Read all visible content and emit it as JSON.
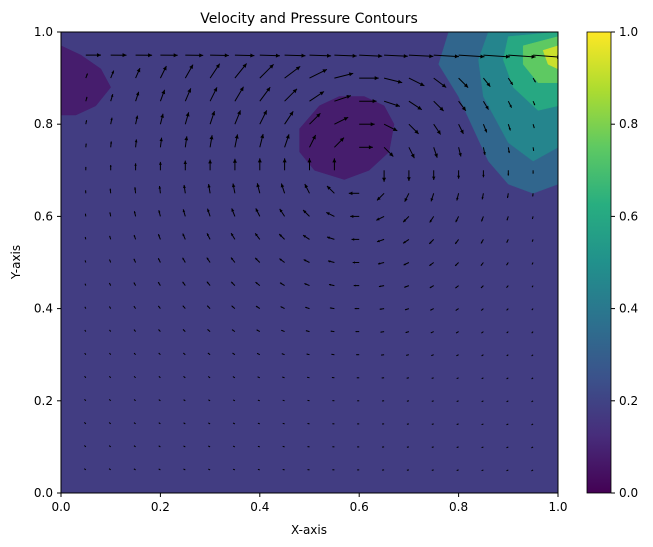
{
  "chart_data": {
    "type": "contour+quiver",
    "title": "Velocity and Pressure Contours",
    "xlabel": "X-axis",
    "ylabel": "Y-axis",
    "xlim": [
      0,
      1
    ],
    "ylim": [
      0,
      1
    ],
    "x_ticks": [
      "0.0",
      "0.2",
      "0.4",
      "0.6",
      "0.8",
      "1.0"
    ],
    "y_ticks": [
      "0.0",
      "0.2",
      "0.4",
      "0.6",
      "0.8",
      "1.0"
    ],
    "colorbar": {
      "colormap": "viridis",
      "range": [
        0,
        1
      ],
      "ticks": [
        "0.0",
        "0.2",
        "0.4",
        "0.6",
        "0.8",
        "1.0"
      ]
    },
    "background_level": 0.18,
    "contour_regions": [
      {
        "level": 0.08,
        "polygon": [
          [
            0.0,
            0.97
          ],
          [
            0.04,
            0.95
          ],
          [
            0.08,
            0.92
          ],
          [
            0.1,
            0.88
          ],
          [
            0.07,
            0.84
          ],
          [
            0.03,
            0.82
          ],
          [
            0.0,
            0.82
          ]
        ]
      },
      {
        "level": 0.08,
        "polygon": [
          [
            0.52,
            0.84
          ],
          [
            0.56,
            0.86
          ],
          [
            0.61,
            0.86
          ],
          [
            0.65,
            0.84
          ],
          [
            0.67,
            0.8
          ],
          [
            0.66,
            0.74
          ],
          [
            0.62,
            0.7
          ],
          [
            0.57,
            0.68
          ],
          [
            0.51,
            0.7
          ],
          [
            0.48,
            0.74
          ],
          [
            0.48,
            0.79
          ]
        ]
      },
      {
        "level": 0.33,
        "polygon": [
          [
            0.78,
            1.0
          ],
          [
            1.0,
            1.0
          ],
          [
            1.0,
            0.67
          ],
          [
            0.95,
            0.65
          ],
          [
            0.9,
            0.67
          ],
          [
            0.86,
            0.72
          ],
          [
            0.83,
            0.79
          ],
          [
            0.8,
            0.86
          ],
          [
            0.76,
            0.93
          ]
        ]
      },
      {
        "level": 0.45,
        "polygon": [
          [
            0.86,
            1.0
          ],
          [
            1.0,
            1.0
          ],
          [
            1.0,
            0.75
          ],
          [
            0.95,
            0.72
          ],
          [
            0.9,
            0.76
          ],
          [
            0.85,
            0.86
          ],
          [
            0.84,
            0.94
          ]
        ]
      },
      {
        "level": 0.6,
        "polygon": [
          [
            0.9,
            0.99
          ],
          [
            1.0,
            1.0
          ],
          [
            1.0,
            0.84
          ],
          [
            0.96,
            0.83
          ],
          [
            0.91,
            0.88
          ],
          [
            0.89,
            0.94
          ]
        ]
      },
      {
        "level": 0.75,
        "polygon": [
          [
            0.93,
            0.97
          ],
          [
            1.0,
            0.99
          ],
          [
            1.0,
            0.89
          ],
          [
            0.96,
            0.89
          ],
          [
            0.93,
            0.93
          ]
        ]
      },
      {
        "level": 0.92,
        "polygon": [
          [
            0.97,
            0.96
          ],
          [
            1.0,
            0.97
          ],
          [
            1.0,
            0.92
          ],
          [
            0.98,
            0.93
          ]
        ]
      }
    ],
    "quiver": {
      "x_range": [
        0.05,
        0.95
      ],
      "y_range": [
        0.05,
        0.95
      ],
      "n": 19,
      "flow": "clockwise lid-driven cavity vortex centered near (0.6, 0.7)"
    }
  }
}
